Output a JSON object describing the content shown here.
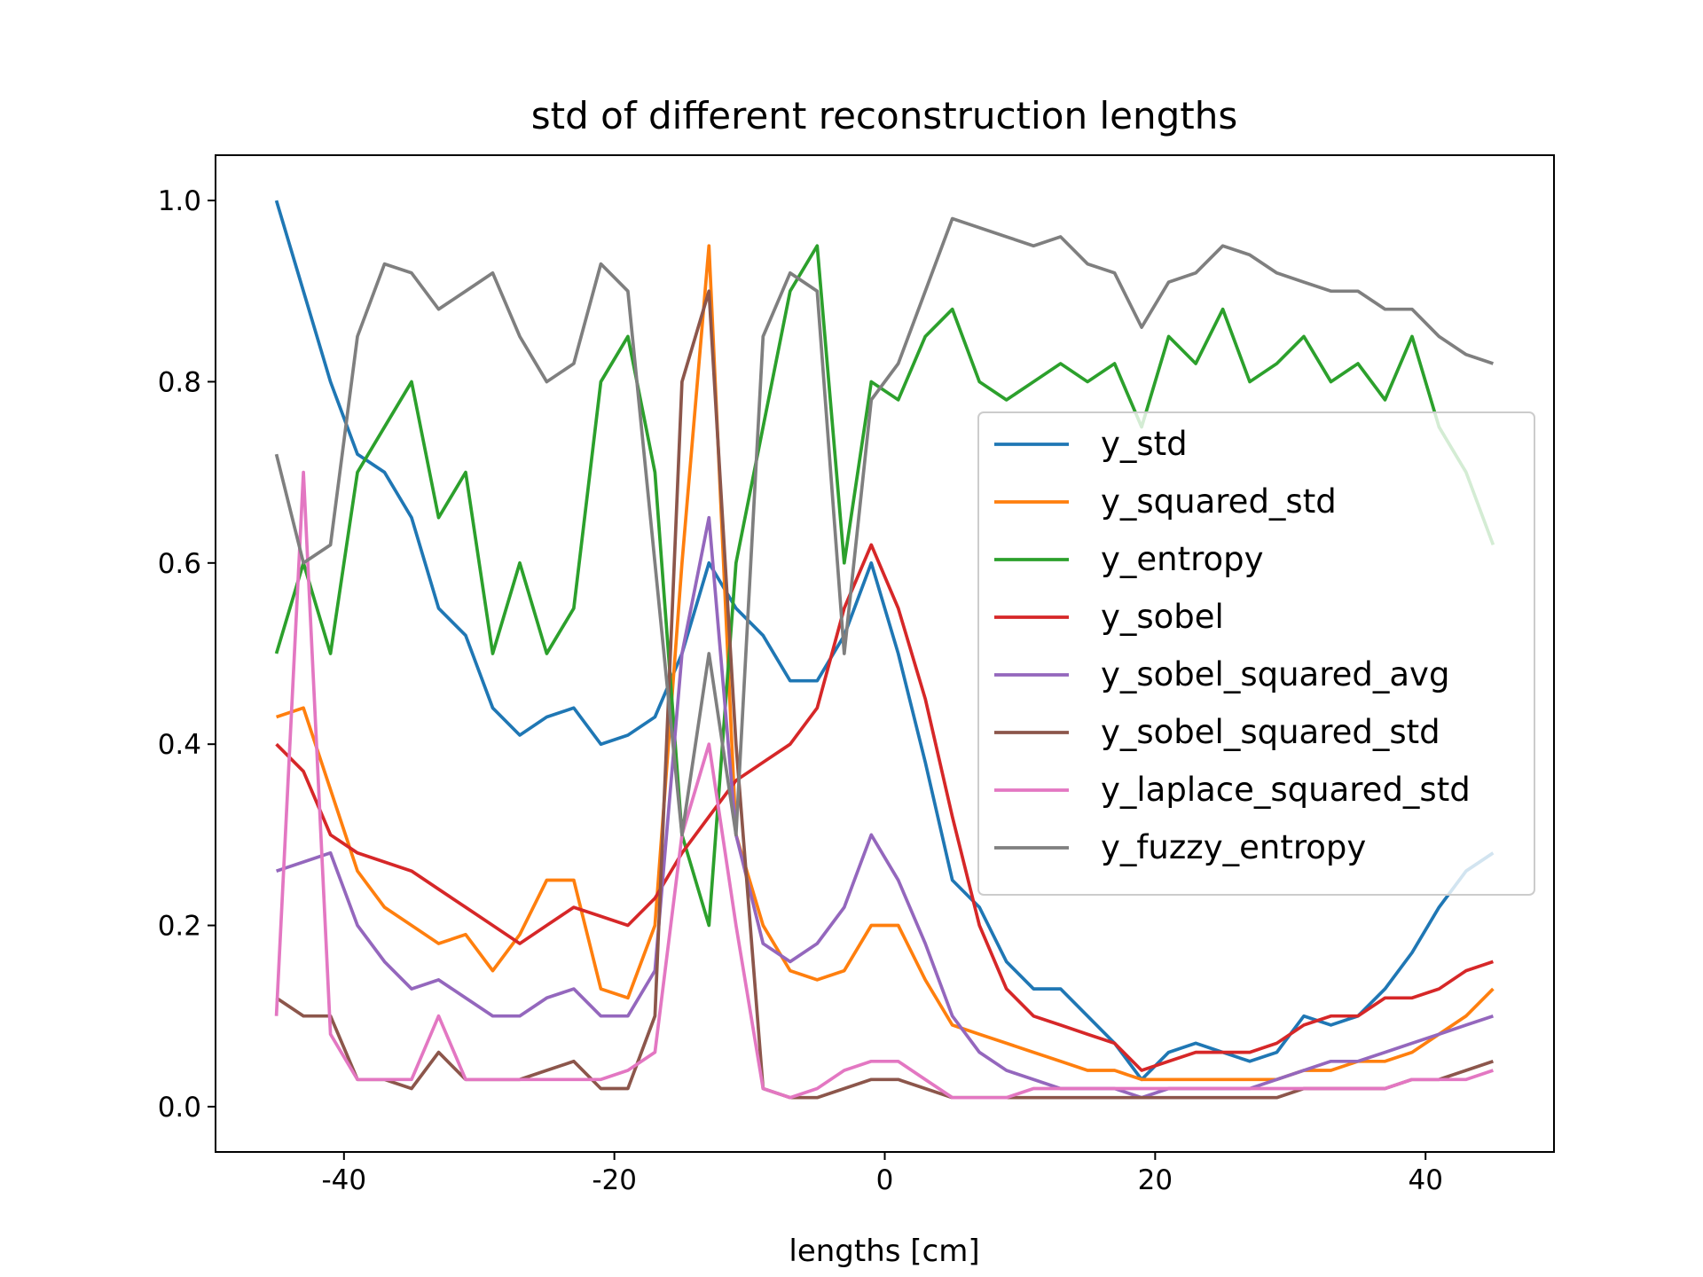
{
  "chart_data": {
    "type": "line",
    "title": "std of different reconstruction lengths",
    "x_label": "lengths [cm]",
    "x": [
      -45,
      -43,
      -41,
      -39,
      -37,
      -35,
      -33,
      -31,
      -29,
      -27,
      -25,
      -23,
      -21,
      -19,
      -17,
      -15,
      -13,
      -11,
      -9,
      -7,
      -5,
      -3,
      -1,
      1,
      3,
      5,
      7,
      9,
      11,
      13,
      15,
      17,
      19,
      21,
      23,
      25,
      27,
      29,
      31,
      33,
      35,
      37,
      39,
      41,
      43,
      45
    ],
    "xlim": [
      -49.5,
      49.5
    ],
    "xticks": [
      -40,
      -20,
      0,
      20,
      40
    ],
    "ylim": [
      -0.05,
      1.05
    ],
    "yticks": [
      {
        "value": 0,
        "label": "0.0"
      },
      0.2,
      0.4,
      0.6,
      0.8,
      {
        "value": 1,
        "label": "1.0"
      }
    ],
    "legend": "center right",
    "series": [
      {
        "name": "y_std",
        "color": "#1f77b4",
        "values": [
          1.0,
          0.9,
          0.8,
          0.72,
          0.7,
          0.65,
          0.55,
          0.52,
          0.44,
          0.41,
          0.43,
          0.44,
          0.4,
          0.41,
          0.43,
          0.5,
          0.6,
          0.55,
          0.52,
          0.47,
          0.47,
          0.52,
          0.6,
          0.5,
          0.38,
          0.25,
          0.22,
          0.16,
          0.13,
          0.13,
          0.1,
          0.07,
          0.03,
          0.06,
          0.07,
          0.06,
          0.05,
          0.06,
          0.1,
          0.09,
          0.1,
          0.13,
          0.17,
          0.22,
          0.26,
          0.28
        ]
      },
      {
        "name": "y_squared_std",
        "color": "#ff7f0e",
        "values": [
          0.43,
          0.44,
          0.35,
          0.26,
          0.22,
          0.2,
          0.18,
          0.19,
          0.15,
          0.19,
          0.25,
          0.25,
          0.13,
          0.12,
          0.2,
          0.6,
          0.95,
          0.3,
          0.2,
          0.15,
          0.14,
          0.15,
          0.2,
          0.2,
          0.14,
          0.09,
          0.08,
          0.07,
          0.06,
          0.05,
          0.04,
          0.04,
          0.03,
          0.03,
          0.03,
          0.03,
          0.03,
          0.03,
          0.04,
          0.04,
          0.05,
          0.05,
          0.06,
          0.08,
          0.1,
          0.13
        ]
      },
      {
        "name": "y_entropy",
        "color": "#2ca02c",
        "values": [
          0.5,
          0.6,
          0.5,
          0.7,
          0.75,
          0.8,
          0.65,
          0.7,
          0.5,
          0.6,
          0.5,
          0.55,
          0.8,
          0.85,
          0.7,
          0.3,
          0.2,
          0.6,
          0.75,
          0.9,
          0.95,
          0.6,
          0.8,
          0.78,
          0.85,
          0.88,
          0.8,
          0.78,
          0.8,
          0.82,
          0.8,
          0.82,
          0.75,
          0.85,
          0.82,
          0.88,
          0.8,
          0.82,
          0.85,
          0.8,
          0.82,
          0.78,
          0.85,
          0.75,
          0.7,
          0.62
        ]
      },
      {
        "name": "y_sobel",
        "color": "#d62728",
        "values": [
          0.4,
          0.37,
          0.3,
          0.28,
          0.27,
          0.26,
          0.24,
          0.22,
          0.2,
          0.18,
          0.2,
          0.22,
          0.21,
          0.2,
          0.23,
          0.28,
          0.32,
          0.36,
          0.38,
          0.4,
          0.44,
          0.55,
          0.62,
          0.55,
          0.45,
          0.32,
          0.2,
          0.13,
          0.1,
          0.09,
          0.08,
          0.07,
          0.04,
          0.05,
          0.06,
          0.06,
          0.06,
          0.07,
          0.09,
          0.1,
          0.1,
          0.12,
          0.12,
          0.13,
          0.15,
          0.16
        ]
      },
      {
        "name": "y_sobel_squared_avg",
        "color": "#9467bd",
        "values": [
          0.26,
          0.27,
          0.28,
          0.2,
          0.16,
          0.13,
          0.14,
          0.12,
          0.1,
          0.1,
          0.12,
          0.13,
          0.1,
          0.1,
          0.15,
          0.5,
          0.65,
          0.3,
          0.18,
          0.16,
          0.18,
          0.22,
          0.3,
          0.25,
          0.18,
          0.1,
          0.06,
          0.04,
          0.03,
          0.02,
          0.02,
          0.02,
          0.01,
          0.02,
          0.02,
          0.02,
          0.02,
          0.03,
          0.04,
          0.05,
          0.05,
          0.06,
          0.07,
          0.08,
          0.09,
          0.1
        ]
      },
      {
        "name": "y_sobel_squared_std",
        "color": "#8c564b",
        "values": [
          0.12,
          0.1,
          0.1,
          0.03,
          0.03,
          0.02,
          0.06,
          0.03,
          0.03,
          0.03,
          0.04,
          0.05,
          0.02,
          0.02,
          0.1,
          0.8,
          0.9,
          0.4,
          0.02,
          0.01,
          0.01,
          0.02,
          0.03,
          0.03,
          0.02,
          0.01,
          0.01,
          0.01,
          0.01,
          0.01,
          0.01,
          0.01,
          0.01,
          0.01,
          0.01,
          0.01,
          0.01,
          0.01,
          0.02,
          0.02,
          0.02,
          0.02,
          0.03,
          0.03,
          0.04,
          0.05
        ]
      },
      {
        "name": "y_laplace_squared_std",
        "color": "#e377c2",
        "values": [
          0.1,
          0.7,
          0.08,
          0.03,
          0.03,
          0.03,
          0.1,
          0.03,
          0.03,
          0.03,
          0.03,
          0.03,
          0.03,
          0.04,
          0.06,
          0.3,
          0.4,
          0.2,
          0.02,
          0.01,
          0.02,
          0.04,
          0.05,
          0.05,
          0.03,
          0.01,
          0.01,
          0.01,
          0.02,
          0.02,
          0.02,
          0.02,
          0.02,
          0.02,
          0.02,
          0.02,
          0.02,
          0.02,
          0.02,
          0.02,
          0.02,
          0.02,
          0.03,
          0.03,
          0.03,
          0.04
        ]
      },
      {
        "name": "y_fuzzy_entropy",
        "color": "#7f7f7f",
        "values": [
          0.72,
          0.6,
          0.62,
          0.85,
          0.93,
          0.92,
          0.88,
          0.9,
          0.92,
          0.85,
          0.8,
          0.82,
          0.93,
          0.9,
          0.6,
          0.3,
          0.5,
          0.3,
          0.85,
          0.92,
          0.9,
          0.5,
          0.78,
          0.82,
          0.9,
          0.98,
          0.97,
          0.96,
          0.95,
          0.96,
          0.93,
          0.92,
          0.86,
          0.91,
          0.92,
          0.95,
          0.94,
          0.92,
          0.91,
          0.9,
          0.9,
          0.88,
          0.88,
          0.85,
          0.83,
          0.82
        ]
      }
    ]
  }
}
